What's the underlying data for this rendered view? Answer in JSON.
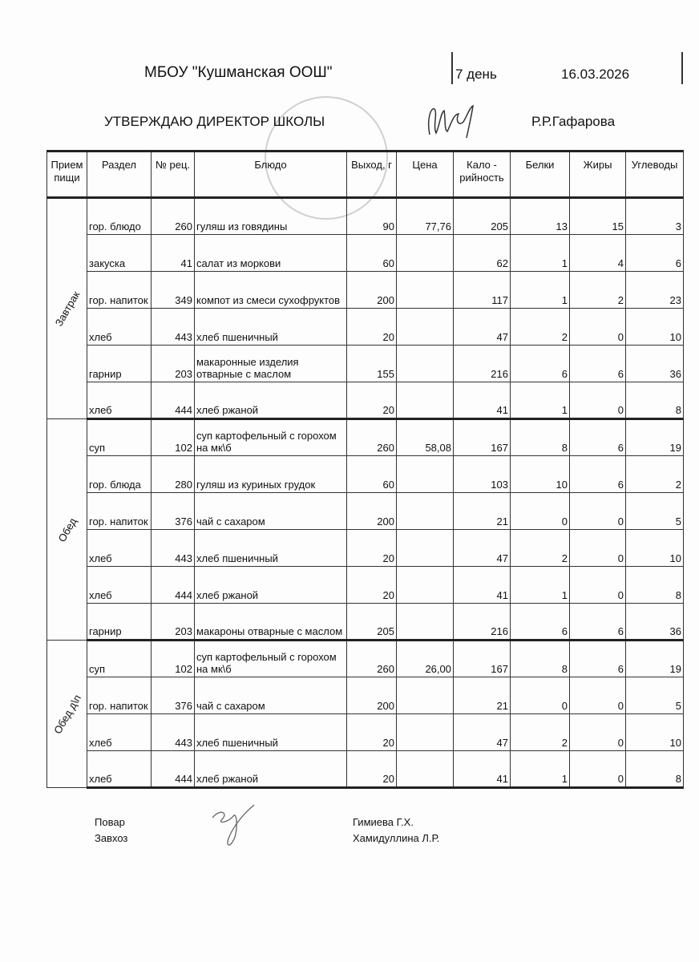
{
  "header": {
    "school": "МБОУ \"Кушманская ООШ\"",
    "day": "7 день",
    "date": "16.03.2026",
    "approve": "УТВЕРЖДАЮ ДИРЕКТОР  ШКОЛЫ",
    "director": "Р.Р.Гафарова"
  },
  "columns": [
    "Прием пищи",
    "Раздел",
    "№ рец.",
    "Блюдо",
    "Выход, г",
    "Цена",
    "Кало - рийность",
    "Белки",
    "Жиры",
    "Углеводы"
  ],
  "groups": [
    {
      "meal": "Завтрак",
      "rows": [
        [
          "гор. блюдо",
          "260",
          "гуляш  из говядины",
          "90",
          "77,76",
          "205",
          "13",
          "15",
          "3"
        ],
        [
          "закуска",
          "41",
          "салат из моркови",
          "60",
          "",
          "62",
          "1",
          "4",
          "6"
        ],
        [
          "гор. напиток",
          "349",
          "компот из смеси сухофруктов",
          "200",
          "",
          "117",
          "1",
          "2",
          "23"
        ],
        [
          "хлеб",
          "443",
          "хлеб пшеничный",
          "20",
          "",
          "47",
          "2",
          "0",
          "10"
        ],
        [
          "гарнир",
          "203",
          "макаронные изделия отварные с маслом",
          "155",
          "",
          "216",
          "6",
          "6",
          "36"
        ],
        [
          "хлеб",
          "444",
          "хлеб ржаной",
          "20",
          "",
          "41",
          "1",
          "0",
          "8"
        ]
      ]
    },
    {
      "meal": "Обед",
      "rows": [
        [
          "суп",
          "102",
          "суп картофельный с горохом на мк\\б",
          "260",
          "58,08",
          "167",
          "8",
          "6",
          "19"
        ],
        [
          "гор. блюда",
          "280",
          "гуляш из куриных грудок",
          "60",
          "",
          "103",
          "10",
          "6",
          "2"
        ],
        [
          "гор. напиток",
          "376",
          "чай с сахаром",
          "200",
          "",
          "21",
          "0",
          "0",
          "5"
        ],
        [
          "хлеб",
          "443",
          "хлеб пшеничный",
          "20",
          "",
          "47",
          "2",
          "0",
          "10"
        ],
        [
          "хлеб",
          "444",
          "хлеб ржаной",
          "20",
          "",
          "41",
          "1",
          "0",
          "8"
        ],
        [
          "гарнир",
          "203",
          "макароны  отварные с маслом",
          "205",
          "",
          "216",
          "6",
          "6",
          "36"
        ]
      ]
    },
    {
      "meal": "Обед д\\п",
      "rows": [
        [
          "суп",
          "102",
          "суп картофельный с горохом на мк\\б",
          "260",
          "26,00",
          "167",
          "8",
          "6",
          "19"
        ],
        [
          "гор. напиток",
          "376",
          "чай с сахаром",
          "200",
          "",
          "21",
          "0",
          "0",
          "5"
        ],
        [
          "хлеб",
          "443",
          "хлеб пшеничный",
          "20",
          "",
          "47",
          "2",
          "0",
          "10"
        ],
        [
          "хлеб",
          "444",
          "хлеб ржаной",
          "20",
          "",
          "41",
          "1",
          "0",
          "8"
        ]
      ]
    }
  ],
  "footer": {
    "cook_label": "Повар",
    "storekeeper_label": "Завхоз",
    "cook_name": "Гимиева Г.Х.",
    "storekeeper_name": "Хамидуллина Л.Р."
  }
}
